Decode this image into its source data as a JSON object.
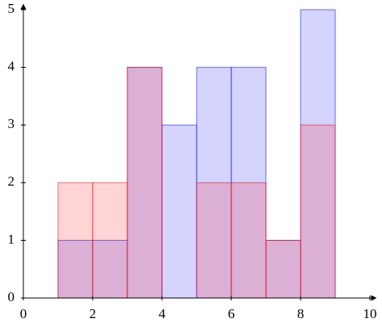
{
  "chart_data": {
    "type": "histogram",
    "bins": [
      0,
      1,
      2,
      3,
      4,
      5,
      6,
      7,
      8,
      9
    ],
    "series": [
      {
        "color": "#0000ff",
        "values": [
          0,
          1,
          1,
          4,
          3,
          4,
          4,
          1,
          5
        ]
      },
      {
        "color": "#ff0000",
        "values": [
          0,
          2,
          2,
          4,
          0,
          2,
          2,
          1,
          3
        ]
      }
    ],
    "xlim": [
      0,
      10
    ],
    "ylim": [
      0,
      5
    ],
    "xticks": [
      0,
      2,
      4,
      6,
      8,
      10
    ],
    "yticks": [
      0,
      1,
      2,
      3,
      4,
      5
    ],
    "grid": false
  }
}
